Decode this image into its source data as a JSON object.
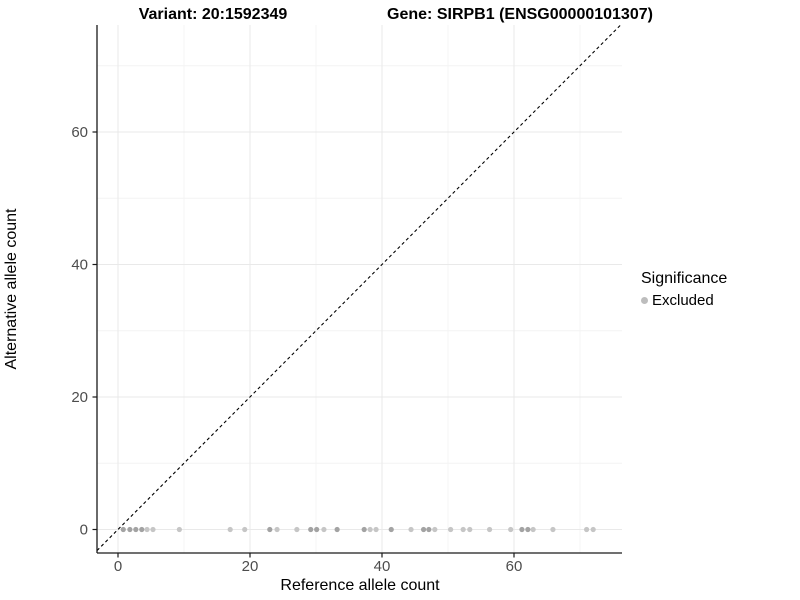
{
  "titles": {
    "left": "Variant: 20:1592349",
    "right": "Gene: SIRPB1 (ENSG00000101307)"
  },
  "axes": {
    "x_label": "Reference allele count",
    "y_label": "Alternative allele count"
  },
  "legend": {
    "title": "Significance",
    "items": [
      {
        "label": "Excluded",
        "color": "#bdbdbd"
      }
    ]
  },
  "colors": {
    "background": "#ffffff",
    "grid_major": "#e9e9e9",
    "grid_minor": "#f4f4f4",
    "axis_line": "#1a1a1a",
    "tick_label": "#4d4d4d",
    "identity_line": "#000000",
    "point_light": "#c6c6c6",
    "point_dark": "#a3a3a3"
  },
  "chart_data": {
    "type": "scatter",
    "title": "Variant: 20:1592349 | Gene: SIRPB1 (ENSG00000101307)",
    "xlabel": "Reference allele count",
    "ylabel": "Alternative allele count",
    "xlim": [
      -3.2,
      76.4
    ],
    "ylim": [
      -3.6,
      76.2
    ],
    "x_ticks": [
      0,
      20,
      40,
      60
    ],
    "y_ticks": [
      0,
      20,
      40,
      60
    ],
    "x_minor_ticks": [
      10,
      30,
      50,
      70
    ],
    "y_minor_ticks": [
      10,
      30,
      50,
      70
    ],
    "grid": true,
    "legend_position": "right",
    "identity_line": {
      "style": "dashed",
      "equation": "y = x"
    },
    "points_format": "[x, y, overlap_dark_flag]",
    "series": [
      {
        "name": "Excluded",
        "points": [
          [
            0.8,
            0,
            1
          ],
          [
            1.8,
            0,
            1
          ],
          [
            2.7,
            0,
            1
          ],
          [
            3.6,
            0,
            1
          ],
          [
            4.4,
            0,
            0
          ],
          [
            5.3,
            0,
            0
          ],
          [
            9.3,
            0,
            0
          ],
          [
            17,
            0,
            0
          ],
          [
            19.2,
            0,
            0
          ],
          [
            23,
            0,
            1
          ],
          [
            24.1,
            0,
            0
          ],
          [
            27.1,
            0,
            0
          ],
          [
            29.2,
            0,
            1
          ],
          [
            30.1,
            0,
            1
          ],
          [
            31.2,
            0,
            0
          ],
          [
            33.2,
            0,
            1
          ],
          [
            37.3,
            0,
            1
          ],
          [
            38.2,
            0,
            0
          ],
          [
            39.1,
            0,
            0
          ],
          [
            41.4,
            0,
            1
          ],
          [
            44.4,
            0,
            0
          ],
          [
            46.3,
            0,
            1
          ],
          [
            47.1,
            0,
            1
          ],
          [
            48,
            0,
            0
          ],
          [
            50.4,
            0,
            0
          ],
          [
            52.3,
            0,
            0
          ],
          [
            53.3,
            0,
            0
          ],
          [
            56.3,
            0,
            0
          ],
          [
            59.5,
            0,
            0
          ],
          [
            61.2,
            0,
            1
          ],
          [
            62.1,
            0,
            1
          ],
          [
            62.9,
            0,
            0
          ],
          [
            65.9,
            0,
            0
          ],
          [
            71,
            0,
            0
          ],
          [
            72,
            0,
            0
          ]
        ]
      }
    ]
  }
}
